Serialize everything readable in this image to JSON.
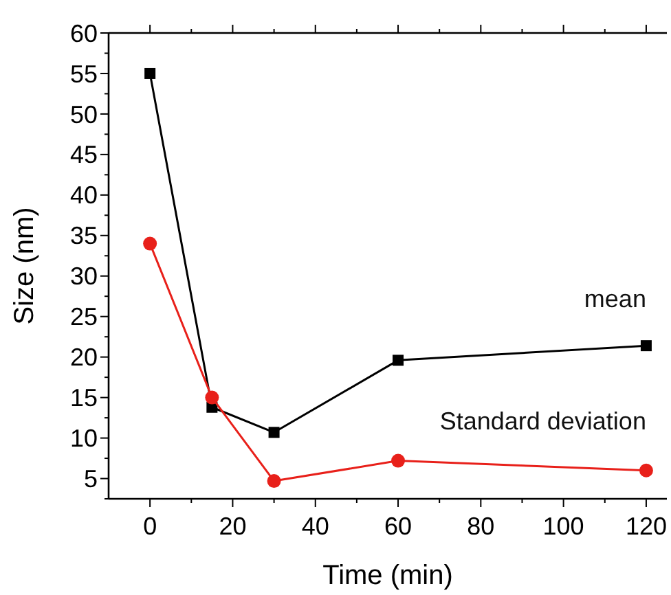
{
  "chart_data": {
    "type": "line",
    "xlabel": "Time (min)",
    "ylabel": "Size (nm)",
    "x": [
      0,
      15,
      30,
      60,
      120
    ],
    "series": [
      {
        "name": "mean",
        "color": "#000000",
        "marker": "square",
        "values": [
          55,
          13.8,
          10.7,
          19.6,
          21.4
        ]
      },
      {
        "name": "Standard deviation",
        "color": "#e8201a",
        "marker": "circle",
        "values": [
          34,
          15,
          4.7,
          7.2,
          6
        ]
      }
    ],
    "xlim": [
      -10,
      125
    ],
    "xticks": [
      0,
      20,
      40,
      60,
      80,
      100,
      120
    ],
    "ylim": [
      2.5,
      60
    ],
    "yticks": [
      5,
      10,
      15,
      20,
      25,
      30,
      35,
      40,
      45,
      50,
      55,
      60
    ],
    "grid": false,
    "legend": false
  }
}
